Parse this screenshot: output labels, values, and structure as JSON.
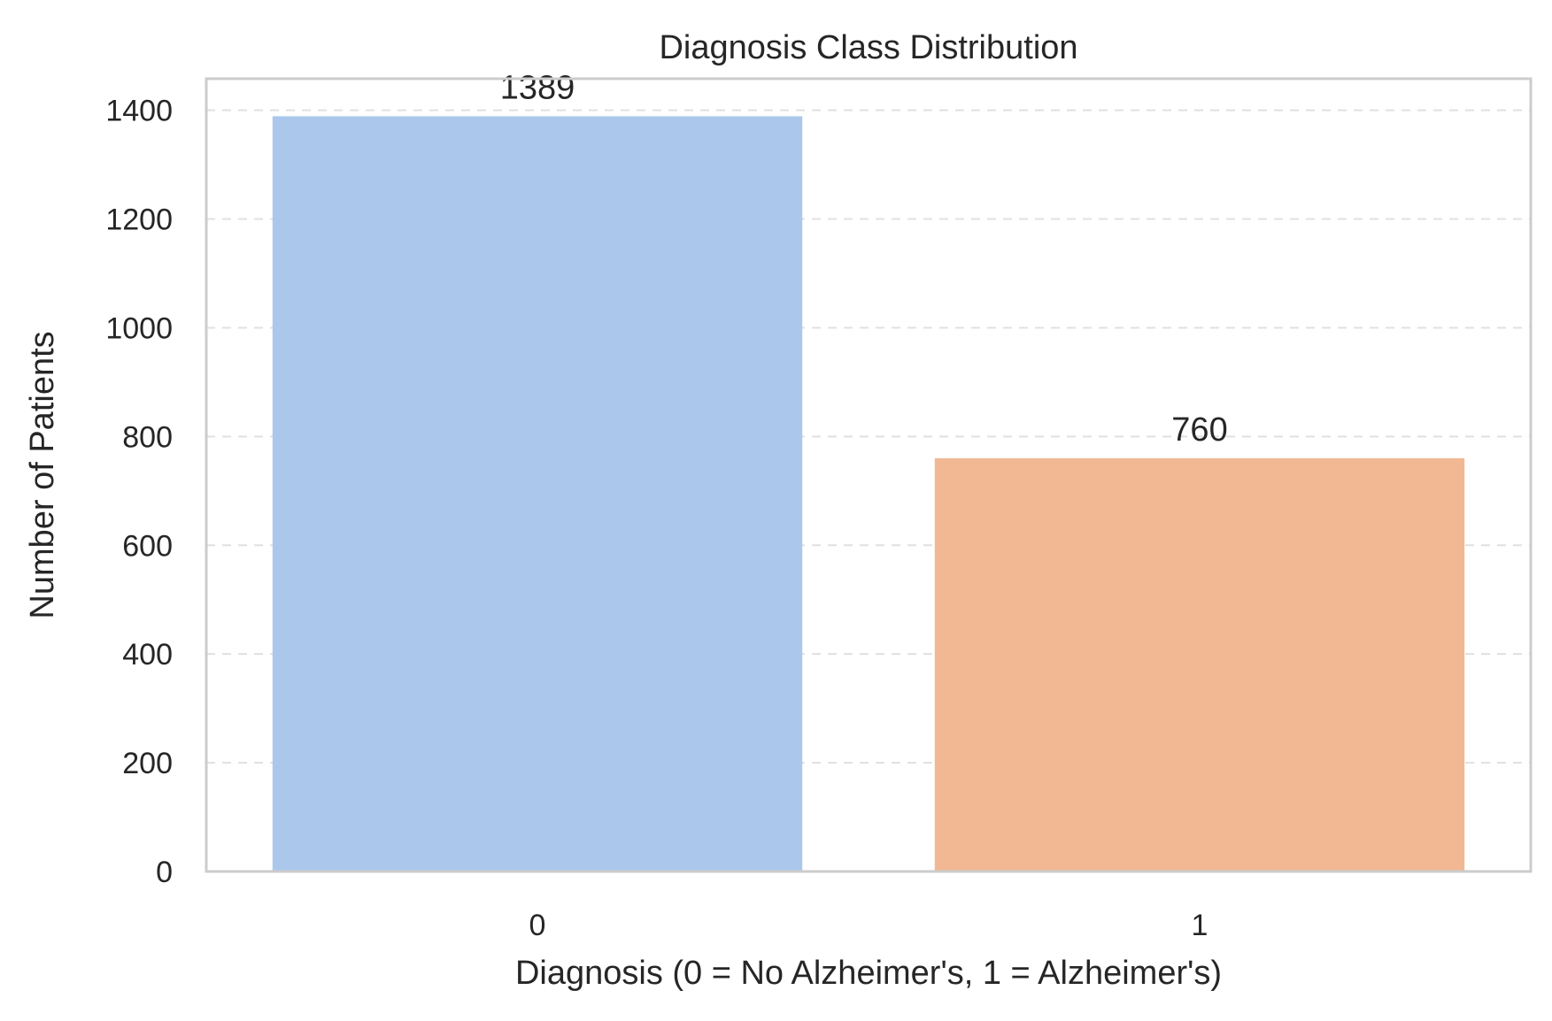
{
  "chart_data": {
    "type": "bar",
    "title": "Diagnosis Class Distribution",
    "xlabel": "Diagnosis (0 = No Alzheimer's, 1 = Alzheimer's)",
    "ylabel": "Number of Patients",
    "categories": [
      "0",
      "1"
    ],
    "values": [
      1389,
      760
    ],
    "data_labels": [
      "1389",
      "760"
    ],
    "bar_colors": [
      "#abc8ec",
      "#f1b893"
    ],
    "ylim": [
      0,
      1458
    ],
    "yticks": [
      0,
      200,
      400,
      600,
      800,
      1000,
      1200,
      1400
    ],
    "ytick_labels": [
      "0",
      "200",
      "400",
      "600",
      "800",
      "1000",
      "1200",
      "1400"
    ],
    "grid": "y-dashed",
    "legend": "none"
  }
}
